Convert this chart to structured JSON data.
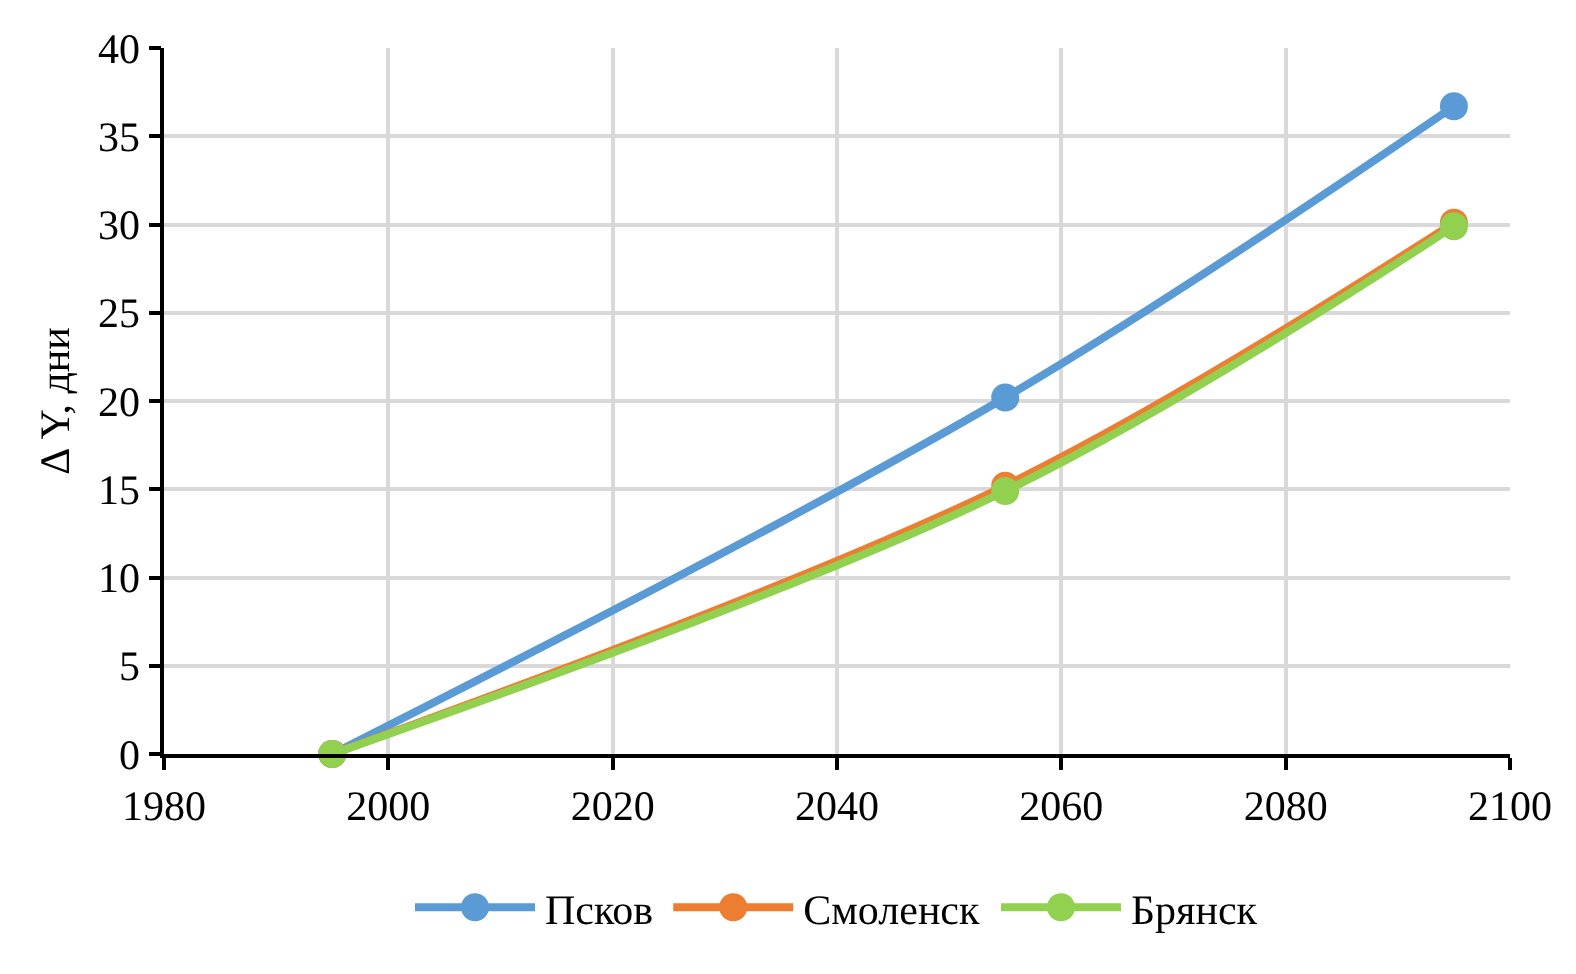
{
  "chart_data": {
    "type": "line",
    "ylabel": "Δ Y, дни",
    "x": [
      1995,
      2055,
      2095
    ],
    "series": [
      {
        "name": "Псков",
        "color": "#5b9bd5",
        "values": [
          0,
          20.2,
          36.7
        ]
      },
      {
        "name": "Смоленск",
        "color": "#ed7d31",
        "values": [
          0,
          15.2,
          30.1
        ]
      },
      {
        "name": "Брянск",
        "color": "#92d050",
        "values": [
          0,
          14.9,
          29.9
        ]
      }
    ],
    "xlim": [
      1980,
      2100
    ],
    "xticks": [
      1980,
      2000,
      2020,
      2040,
      2060,
      2080,
      2100
    ],
    "ylim": [
      0,
      40
    ],
    "yticks": [
      0,
      5,
      10,
      15,
      20,
      25,
      30,
      35,
      40
    ],
    "grid": true,
    "legend": "bottom",
    "marker": "circle",
    "line_style": "solid"
  }
}
